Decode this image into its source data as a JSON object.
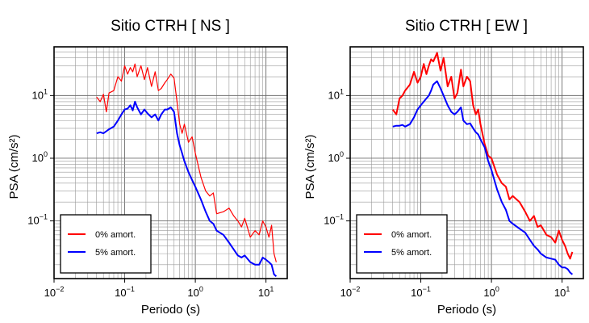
{
  "chart_data": [
    {
      "type": "line",
      "title": "Sitio CTRH [ NS ]",
      "xlabel": "Periodo (s)",
      "ylabel": "PSA (cm/s²)",
      "xscale": "log",
      "yscale": "log",
      "xlim": [
        0.01,
        20
      ],
      "ylim": [
        0.012,
        60
      ],
      "grid": true,
      "legend_position": "bottom-left",
      "x_ticks": [
        {
          "value": 0.01,
          "base": "10",
          "exp": "−2"
        },
        {
          "value": 0.1,
          "base": "10",
          "exp": "−1"
        },
        {
          "value": 1,
          "base": "10",
          "exp": "0"
        },
        {
          "value": 10,
          "base": "10",
          "exp": "1"
        }
      ],
      "y_ticks": [
        {
          "value": 0.1,
          "base": "10",
          "exp": "−1"
        },
        {
          "value": 1,
          "base": "10",
          "exp": "0"
        },
        {
          "value": 10,
          "base": "10",
          "exp": "1"
        }
      ],
      "series": [
        {
          "name": "0% amort.",
          "color": "#ff0000",
          "width": 1.2,
          "x": [
            0.04,
            0.045,
            0.05,
            0.055,
            0.06,
            0.07,
            0.08,
            0.09,
            0.1,
            0.11,
            0.12,
            0.13,
            0.14,
            0.15,
            0.17,
            0.19,
            0.21,
            0.24,
            0.27,
            0.3,
            0.33,
            0.37,
            0.4,
            0.45,
            0.5,
            0.55,
            0.6,
            0.65,
            0.7,
            0.8,
            0.9,
            1.0,
            1.2,
            1.4,
            1.6,
            1.8,
            2.0,
            2.5,
            3.0,
            3.5,
            4.0,
            4.5,
            5.0,
            6.0,
            7.0,
            8.0,
            9.0,
            10.0,
            11.0,
            12.0,
            13.0,
            14.0
          ],
          "y": [
            9.5,
            8.0,
            10.5,
            5.5,
            11.0,
            12.0,
            20.0,
            17.0,
            30.0,
            22.0,
            28.0,
            24.0,
            32.0,
            20.0,
            30.0,
            18.0,
            28.0,
            14.0,
            24.0,
            12.0,
            13.0,
            16.0,
            18.0,
            22.0,
            19.0,
            8.0,
            3.5,
            2.5,
            3.5,
            1.8,
            2.2,
            1.2,
            0.5,
            0.3,
            0.25,
            0.28,
            0.13,
            0.14,
            0.16,
            0.12,
            0.1,
            0.08,
            0.11,
            0.055,
            0.07,
            0.06,
            0.1,
            0.08,
            0.055,
            0.085,
            0.03,
            0.022
          ]
        },
        {
          "name": "5% amort.",
          "color": "#0000ff",
          "width": 2,
          "x": [
            0.04,
            0.045,
            0.05,
            0.055,
            0.06,
            0.07,
            0.08,
            0.09,
            0.1,
            0.11,
            0.12,
            0.13,
            0.14,
            0.15,
            0.17,
            0.19,
            0.21,
            0.24,
            0.27,
            0.3,
            0.33,
            0.37,
            0.4,
            0.45,
            0.5,
            0.55,
            0.6,
            0.65,
            0.7,
            0.8,
            0.9,
            1.0,
            1.2,
            1.4,
            1.6,
            1.8,
            2.0,
            2.5,
            3.0,
            3.5,
            4.0,
            4.5,
            5.0,
            6.0,
            7.0,
            8.0,
            9.0,
            10.0,
            11.0,
            12.0,
            13.0,
            14.0
          ],
          "y": [
            2.5,
            2.6,
            2.5,
            2.7,
            2.9,
            3.2,
            4.0,
            5.0,
            6.0,
            6.2,
            7.0,
            5.8,
            8.0,
            6.5,
            5.0,
            6.0,
            5.2,
            4.5,
            5.0,
            4.0,
            5.0,
            6.0,
            6.0,
            6.5,
            5.5,
            2.5,
            1.6,
            1.2,
            0.9,
            0.6,
            0.45,
            0.35,
            0.22,
            0.14,
            0.1,
            0.09,
            0.07,
            0.06,
            0.045,
            0.035,
            0.028,
            0.026,
            0.028,
            0.022,
            0.02,
            0.02,
            0.026,
            0.024,
            0.022,
            0.02,
            0.014,
            0.013
          ]
        }
      ]
    },
    {
      "type": "line",
      "title": "Sitio CTRH [ EW ]",
      "xlabel": "Periodo (s)",
      "ylabel": "PSA (cm/s²)",
      "xscale": "log",
      "yscale": "log",
      "xlim": [
        0.01,
        20
      ],
      "ylim": [
        0.012,
        60
      ],
      "grid": true,
      "legend_position": "bottom-left",
      "x_ticks": [
        {
          "value": 0.01,
          "base": "10",
          "exp": "−2"
        },
        {
          "value": 0.1,
          "base": "10",
          "exp": "−1"
        },
        {
          "value": 1,
          "base": "10",
          "exp": "0"
        },
        {
          "value": 10,
          "base": "10",
          "exp": "1"
        }
      ],
      "y_ticks": [
        {
          "value": 0.1,
          "base": "10",
          "exp": "−1"
        },
        {
          "value": 1,
          "base": "10",
          "exp": "0"
        },
        {
          "value": 10,
          "base": "10",
          "exp": "1"
        }
      ],
      "series": [
        {
          "name": "0% amort.",
          "color": "#ff0000",
          "width": 2,
          "x": [
            0.04,
            0.045,
            0.05,
            0.055,
            0.06,
            0.07,
            0.08,
            0.09,
            0.1,
            0.11,
            0.12,
            0.13,
            0.14,
            0.15,
            0.17,
            0.19,
            0.21,
            0.24,
            0.27,
            0.3,
            0.33,
            0.37,
            0.4,
            0.45,
            0.5,
            0.55,
            0.6,
            0.65,
            0.7,
            0.8,
            0.9,
            1.0,
            1.2,
            1.4,
            1.6,
            1.8,
            2.0,
            2.5,
            3.0,
            3.5,
            4.0,
            4.5,
            5.0,
            6.0,
            7.0,
            8.0,
            9.0,
            10.0,
            11.0,
            12.0,
            13.0,
            14.0
          ],
          "y": [
            6.0,
            5.0,
            9.0,
            10.0,
            12.0,
            15.0,
            24.0,
            16.0,
            20.0,
            32.0,
            22.0,
            30.0,
            38.0,
            35.0,
            48.0,
            25.0,
            40.0,
            14.0,
            20.0,
            9.0,
            11.0,
            26.0,
            14.0,
            20.0,
            17.0,
            7.0,
            5.0,
            6.0,
            3.5,
            1.7,
            1.1,
            1.0,
            0.55,
            0.4,
            0.35,
            0.22,
            0.25,
            0.2,
            0.14,
            0.1,
            0.12,
            0.08,
            0.085,
            0.06,
            0.055,
            0.045,
            0.07,
            0.05,
            0.04,
            0.03,
            0.025,
            0.032
          ]
        },
        {
          "name": "5% amort.",
          "color": "#0000ff",
          "width": 2,
          "x": [
            0.04,
            0.045,
            0.05,
            0.055,
            0.06,
            0.07,
            0.08,
            0.09,
            0.1,
            0.11,
            0.12,
            0.13,
            0.14,
            0.15,
            0.17,
            0.19,
            0.21,
            0.24,
            0.27,
            0.3,
            0.33,
            0.37,
            0.4,
            0.45,
            0.5,
            0.55,
            0.6,
            0.65,
            0.7,
            0.8,
            0.9,
            1.0,
            1.2,
            1.4,
            1.6,
            1.8,
            2.0,
            2.5,
            3.0,
            3.5,
            4.0,
            4.5,
            5.0,
            6.0,
            7.0,
            8.0,
            9.0,
            10.0,
            11.0,
            12.0,
            13.0,
            14.0
          ],
          "y": [
            3.2,
            3.3,
            3.3,
            3.4,
            3.2,
            3.5,
            4.5,
            6.0,
            7.0,
            8.0,
            9.0,
            10.0,
            12.0,
            15.0,
            17.0,
            13.0,
            10.0,
            7.0,
            5.5,
            5.0,
            5.5,
            6.5,
            4.0,
            3.5,
            3.6,
            3.0,
            2.6,
            2.4,
            2.0,
            1.5,
            0.9,
            0.65,
            0.32,
            0.2,
            0.15,
            0.1,
            0.09,
            0.075,
            0.065,
            0.05,
            0.04,
            0.035,
            0.03,
            0.026,
            0.025,
            0.024,
            0.02,
            0.018,
            0.018,
            0.017,
            0.015,
            0.014
          ]
        }
      ]
    }
  ]
}
